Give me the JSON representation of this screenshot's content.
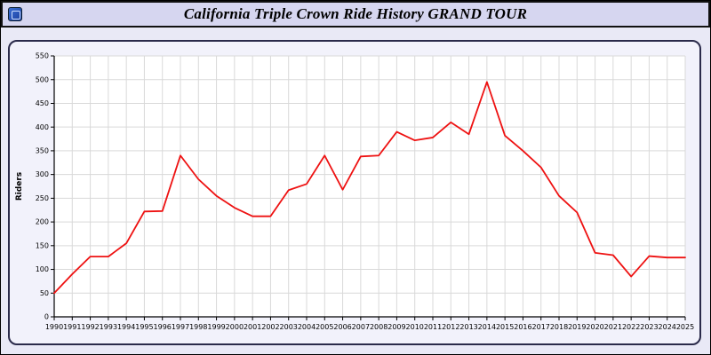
{
  "window": {
    "title": "California Triple Crown Ride History GRAND TOUR"
  },
  "chart_data": {
    "type": "line",
    "title": "California Triple Crown Ride History GRAND TOUR",
    "xlabel": "",
    "ylabel": "Riders",
    "ylim": [
      0,
      550
    ],
    "ytick_step": 50,
    "grid": true,
    "legend_position": "none",
    "line_color": "#ee1111",
    "x": [
      1990,
      1991,
      1992,
      1993,
      1994,
      1995,
      1996,
      1997,
      1998,
      1999,
      2000,
      2001,
      2002,
      2003,
      2004,
      2005,
      2006,
      2007,
      2008,
      2009,
      2010,
      2011,
      2012,
      2013,
      2014,
      2015,
      2016,
      2017,
      2018,
      2019,
      2020,
      2021,
      2022,
      2023,
      2024,
      2025
    ],
    "series": [
      {
        "name": "Riders",
        "values": [
          50,
          90,
          127,
          127,
          155,
          222,
          223,
          340,
          290,
          255,
          230,
          212,
          212,
          267,
          280,
          340,
          268,
          338,
          340,
          390,
          372,
          378,
          410,
          385,
          495,
          382,
          350,
          315,
          255,
          220,
          135,
          130,
          85,
          128,
          125,
          125
        ]
      }
    ]
  }
}
